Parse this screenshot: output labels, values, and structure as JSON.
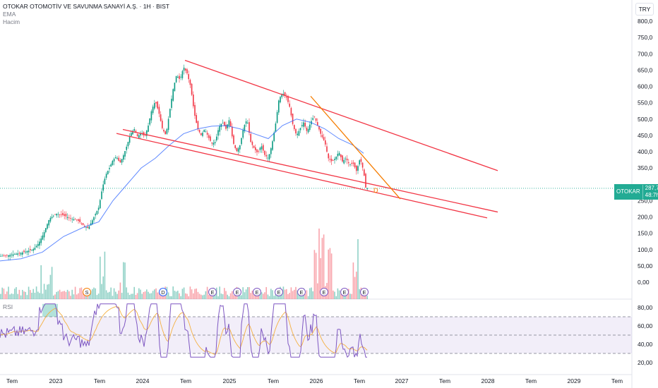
{
  "header": {
    "title": "OTOKAR OTOMOTİV VE SAVUNMA SANAYİ A.Ş. · 1H · BIST",
    "indicator_1": "EMA",
    "indicator_2": "Hacim",
    "currency": "TRY"
  },
  "rsi_panel": {
    "label": "RSI"
  },
  "price_tag": {
    "symbol": "OTOKAR",
    "price": "287,75",
    "countdown": "48:7h"
  },
  "chart_data": {
    "type": "candlestick",
    "title": "OTOKAR OTOMOTİV VE SAVUNMA SANAYİ A.Ş. · 1H · BIST",
    "y_axis_ticks": [
      "800,0",
      "750,0",
      "700,0",
      "650,0",
      "600,0",
      "550,0",
      "500,0",
      "450,0",
      "400,0",
      "350,0",
      "300,0",
      "250,0",
      "200,0",
      "150,0",
      "100,0",
      "50,00",
      "0,00"
    ],
    "x_axis_ticks": [
      "Tem",
      "2023",
      "Tem",
      "2024",
      "Tem",
      "2025",
      "Tem",
      "2026",
      "Tem",
      "2027",
      "Tem",
      "2028",
      "Tem",
      "2029",
      "Tem"
    ],
    "rsi_ticks": [
      "80,00",
      "60,00",
      "40,00",
      "20,00"
    ],
    "price_path": [
      [
        0,
        80
      ],
      [
        10,
        82
      ],
      [
        20,
        86
      ],
      [
        30,
        90
      ],
      [
        40,
        96
      ],
      [
        48,
        102
      ],
      [
        55,
        120
      ],
      [
        62,
        150
      ],
      [
        70,
        195
      ],
      [
        80,
        210
      ],
      [
        90,
        205
      ],
      [
        100,
        195
      ],
      [
        110,
        190
      ],
      [
        118,
        175
      ],
      [
        125,
        165
      ],
      [
        132,
        195
      ],
      [
        140,
        230
      ],
      [
        145,
        290
      ],
      [
        150,
        330
      ],
      [
        155,
        350
      ],
      [
        160,
        375
      ],
      [
        165,
        385
      ],
      [
        170,
        365
      ],
      [
        175,
        390
      ],
      [
        180,
        420
      ],
      [
        185,
        455
      ],
      [
        190,
        470
      ],
      [
        195,
        445
      ],
      [
        200,
        460
      ],
      [
        205,
        445
      ],
      [
        210,
        480
      ],
      [
        215,
        530
      ],
      [
        220,
        555
      ],
      [
        225,
        520
      ],
      [
        230,
        470
      ],
      [
        235,
        450
      ],
      [
        240,
        520
      ],
      [
        245,
        590
      ],
      [
        250,
        635
      ],
      [
        255,
        620
      ],
      [
        260,
        660
      ],
      [
        265,
        640
      ],
      [
        270,
        600
      ],
      [
        275,
        520
      ],
      [
        280,
        470
      ],
      [
        285,
        450
      ],
      [
        290,
        470
      ],
      [
        295,
        445
      ],
      [
        300,
        425
      ],
      [
        305,
        430
      ],
      [
        310,
        475
      ],
      [
        315,
        490
      ],
      [
        320,
        470
      ],
      [
        325,
        500
      ],
      [
        330,
        430
      ],
      [
        335,
        400
      ],
      [
        340,
        420
      ],
      [
        345,
        475
      ],
      [
        350,
        500
      ],
      [
        355,
        430
      ],
      [
        360,
        410
      ],
      [
        365,
        395
      ],
      [
        370,
        420
      ],
      [
        375,
        390
      ],
      [
        380,
        380
      ],
      [
        385,
        420
      ],
      [
        390,
        480
      ],
      [
        395,
        560
      ],
      [
        400,
        580
      ],
      [
        405,
        570
      ],
      [
        410,
        540
      ],
      [
        415,
        480
      ],
      [
        420,
        450
      ],
      [
        425,
        470
      ],
      [
        430,
        490
      ],
      [
        435,
        460
      ],
      [
        440,
        490
      ],
      [
        445,
        510
      ],
      [
        450,
        480
      ],
      [
        455,
        450
      ],
      [
        460,
        430
      ],
      [
        465,
        380
      ],
      [
        470,
        370
      ],
      [
        475,
        380
      ],
      [
        480,
        400
      ],
      [
        485,
        370
      ],
      [
        490,
        380
      ],
      [
        495,
        360
      ],
      [
        500,
        365
      ],
      [
        505,
        340
      ],
      [
        510,
        380
      ],
      [
        515,
        340
      ],
      [
        518,
        290
      ],
      [
        521,
        287
      ]
    ],
    "ema_path": [
      [
        0,
        65
      ],
      [
        30,
        72
      ],
      [
        60,
        92
      ],
      [
        90,
        140
      ],
      [
        120,
        170
      ],
      [
        140,
        185
      ],
      [
        160,
        250
      ],
      [
        180,
        300
      ],
      [
        200,
        350
      ],
      [
        220,
        380
      ],
      [
        240,
        420
      ],
      [
        260,
        455
      ],
      [
        280,
        470
      ],
      [
        300,
        478
      ],
      [
        320,
        480
      ],
      [
        340,
        470
      ],
      [
        360,
        455
      ],
      [
        380,
        440
      ],
      [
        400,
        480
      ],
      [
        420,
        500
      ],
      [
        440,
        490
      ],
      [
        460,
        470
      ],
      [
        480,
        440
      ],
      [
        500,
        420
      ],
      [
        515,
        395
      ]
    ],
    "trendlines": [
      {
        "color": "#f23645",
        "from": [
          262,
          680
        ],
        "to": [
          705,
          342
        ]
      },
      {
        "color": "#f23645",
        "from": [
          174,
          468
        ],
        "to": [
          705,
          215
        ]
      },
      {
        "color": "#f23645",
        "from": [
          165,
          456
        ],
        "to": [
          690,
          197
        ]
      },
      {
        "color": "#f57c00",
        "from": [
          440,
          570
        ],
        "to": [
          567,
          255
        ]
      }
    ],
    "volume_events": [
      {
        "label": "S",
        "x": 123
      },
      {
        "label": "D",
        "x": 231
      },
      {
        "label": "E",
        "x": 301
      },
      {
        "label": "E",
        "x": 336
      },
      {
        "label": "E",
        "x": 364
      },
      {
        "label": "E",
        "x": 395
      },
      {
        "label": "E",
        "x": 427
      },
      {
        "label": "E",
        "x": 459
      },
      {
        "label": "E",
        "x": 488
      },
      {
        "label": "E",
        "x": 516
      }
    ],
    "marker_label": "D",
    "current_price": 287.75,
    "ylim": [
      0,
      800
    ],
    "rsi_ylim": [
      20,
      80
    ],
    "rsi_band": [
      30,
      70
    ]
  }
}
